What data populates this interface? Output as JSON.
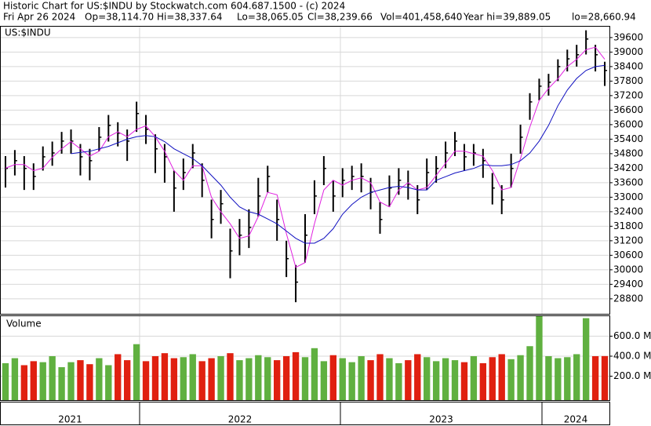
{
  "header": {
    "title": "Historic Chart for US:$INDU by Stockwatch.com 604.687.1500 - (c) 2024",
    "stats": [
      "Fri Apr 26 2024",
      "Op=38,114.70",
      "Hi=38,337.64",
      "Lo=38,065.05",
      "Cl=38,239.66",
      "Vol=401,458,640",
      "Year hi=39,889.05",
      "lo=28,660.94"
    ]
  },
  "chart_data": [
    {
      "type": "ohlc",
      "label": "US:$INDU",
      "ylim": [
        28180,
        40050
      ],
      "yticks": [
        28800,
        29400,
        30000,
        30600,
        31200,
        31800,
        32400,
        33000,
        33600,
        34200,
        34800,
        35400,
        36000,
        36600,
        37200,
        37800,
        38400,
        39000,
        39600
      ],
      "grid": true,
      "up_color": "#000000",
      "high": [
        34700,
        34950,
        34700,
        34400,
        35100,
        35300,
        35700,
        35800,
        35200,
        35000,
        35900,
        36400,
        36100,
        35800,
        36950,
        36400,
        35600,
        35200,
        34100,
        34600,
        35200,
        34400,
        32900,
        33300,
        31700,
        32100,
        32500,
        33800,
        34300,
        32900,
        31200,
        30200,
        32300,
        33700,
        34700,
        33700,
        34200,
        34300,
        34400,
        33800,
        32800,
        33900,
        34200,
        34100,
        33500,
        34600,
        34700,
        35300,
        35700,
        35200,
        35200,
        35000,
        34000,
        33500,
        34800,
        36000,
        37300,
        37900,
        38100,
        38700,
        39100,
        39300,
        39900,
        39300,
        38600
      ],
      "low": [
        33400,
        33900,
        33300,
        33300,
        34100,
        34300,
        34800,
        34800,
        33900,
        33700,
        34900,
        35300,
        35100,
        34500,
        35700,
        35200,
        34000,
        33600,
        32400,
        33300,
        34200,
        33000,
        31300,
        31900,
        29650,
        30600,
        30900,
        32200,
        33200,
        31200,
        29700,
        28660,
        30300,
        32300,
        33500,
        32400,
        33000,
        33300,
        33200,
        32500,
        31490,
        32600,
        33100,
        32900,
        32300,
        33300,
        33600,
        34200,
        34700,
        34100,
        34300,
        33800,
        32700,
        32300,
        33400,
        34800,
        36200,
        37000,
        37200,
        37800,
        38200,
        38400,
        38900,
        38200,
        37600
      ],
      "close": [
        34190,
        34510,
        34190,
        33860,
        34670,
        34830,
        35320,
        35320,
        34670,
        34510,
        35480,
        35970,
        35650,
        35320,
        36460,
        35810,
        35000,
        34670,
        33380,
        34020,
        34830,
        33700,
        32080,
        32730,
        30780,
        31430,
        31750,
        33050,
        33860,
        32080,
        30460,
        29490,
        31430,
        33050,
        34190,
        33050,
        33700,
        33860,
        33860,
        33210,
        32080,
        33380,
        33700,
        33540,
        32890,
        34020,
        34190,
        34830,
        35320,
        34670,
        34830,
        34510,
        33380,
        32890,
        34190,
        35480,
        36940,
        37590,
        37750,
        38400,
        38720,
        38890,
        39540,
        38890,
        38240
      ],
      "series": [
        {
          "color": "#e020e0",
          "values": [
            34200,
            34350,
            34350,
            34100,
            34200,
            34650,
            35000,
            35300,
            35000,
            34700,
            34900,
            35500,
            35700,
            35500,
            35800,
            35950,
            35500,
            34900,
            34100,
            33700,
            34300,
            34300,
            33000,
            32400,
            31900,
            31300,
            31400,
            32200,
            33200,
            33100,
            31500,
            30100,
            30300,
            31900,
            33300,
            33700,
            33500,
            33700,
            33800,
            33600,
            32800,
            32600,
            33300,
            33600,
            33300,
            33400,
            33900,
            34400,
            34900,
            34900,
            34800,
            34700,
            34100,
            33300,
            33400,
            34600,
            35900,
            37000,
            37500,
            37900,
            38400,
            38700,
            39100,
            39200,
            38700
          ]
        },
        {
          "color": "#1010c0",
          "values": [
            null,
            null,
            null,
            null,
            null,
            null,
            null,
            34800,
            34850,
            34900,
            35000,
            35100,
            35250,
            35400,
            35500,
            35550,
            35500,
            35300,
            35000,
            34800,
            34600,
            34300,
            33900,
            33500,
            33000,
            32600,
            32400,
            32300,
            32100,
            31900,
            31600,
            31300,
            31100,
            31100,
            31300,
            31700,
            32300,
            32700,
            33000,
            33200,
            33300,
            33400,
            33450,
            33400,
            33300,
            33300,
            33700,
            33850,
            34000,
            34100,
            34190,
            34350,
            34300,
            34300,
            34350,
            34510,
            34830,
            35320,
            35970,
            36780,
            37430,
            37910,
            38240,
            38400,
            38450
          ]
        }
      ]
    },
    {
      "type": "volume",
      "label": "Volume",
      "ylim": [
        0,
        800
      ],
      "yticks": [
        {
          "value": 200,
          "label": "200.0 M"
        },
        {
          "value": 400,
          "label": "400.0 M"
        },
        {
          "value": 600,
          "label": "600.0 M"
        }
      ],
      "up_color": "#60b040",
      "down_color": "#e02010",
      "values": [
        330,
        380,
        310,
        350,
        340,
        400,
        290,
        340,
        360,
        320,
        380,
        310,
        420,
        360,
        520,
        350,
        400,
        430,
        380,
        390,
        420,
        350,
        380,
        400,
        430,
        360,
        380,
        410,
        390,
        360,
        400,
        440,
        390,
        480,
        350,
        410,
        380,
        340,
        400,
        360,
        420,
        380,
        330,
        360,
        420,
        390,
        350,
        380,
        360,
        340,
        400,
        330,
        390,
        420,
        370,
        410,
        500,
        800,
        400,
        380,
        390,
        420,
        780,
        400,
        401
      ]
    },
    {
      "type": "period-axis",
      "categories": [
        "2021",
        "2022",
        "2023",
        "2024"
      ]
    }
  ]
}
